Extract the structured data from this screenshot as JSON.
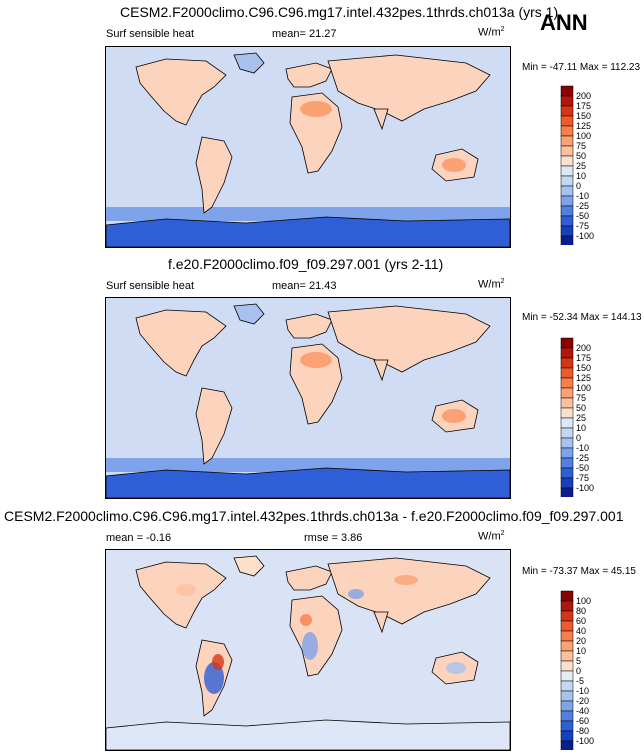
{
  "header": {
    "season": "ANN"
  },
  "panels": [
    {
      "title": "CESM2.F2000climo.C96.C96.mg17.intel.432pes.1thrds.ch013a (yrs 1)",
      "left_label": "Surf sensible heat",
      "center_label": "mean=  21.27",
      "units": "W/m",
      "units_exp": "2",
      "minmax": "Min = -47.11 Max = 112.23"
    },
    {
      "title": "f.e20.F2000climo.f09_f09.297.001 (yrs 2-11)",
      "left_label": "Surf sensible heat",
      "center_label": "mean=  21.43",
      "units": "W/m",
      "units_exp": "2",
      "minmax": "Min = -52.34 Max = 144.13"
    },
    {
      "title": "CESM2.F2000climo.C96.C96.mg17.intel.432pes.1thrds.ch013a - f.e20.F2000climo.f09_f09.297.001",
      "left_label": "mean =  -0.16",
      "center_label": "rmse =  3.86",
      "units": "W/m",
      "units_exp": "2",
      "minmax": "Min = -73.37 Max =  45.15"
    }
  ],
  "chart_data": [
    {
      "type": "heatmap",
      "title": "CESM2.F2000climo.C96.C96.mg17.intel.432pes.1thrds.ch013a (yrs 1)",
      "variable": "Surf sensible heat",
      "units": "W/m2",
      "mean": 21.27,
      "min": -47.11,
      "max": 112.23,
      "colorbar_levels": [
        "200",
        "175",
        "150",
        "125",
        "100",
        "75",
        "50",
        "25",
        "10",
        "0",
        "-10",
        "-25",
        "-50",
        "-75",
        "-100"
      ],
      "colorbar_colors": [
        "#8b0000",
        "#b0170a",
        "#d63618",
        "#ee5a2b",
        "#f87e4b",
        "#fba173",
        "#fcc09c",
        "#fde0cc",
        "#dde7f7",
        "#c5d6f2",
        "#a9c1ee",
        "#7ea3ea",
        "#5180e0",
        "#2e5fd6",
        "#1740c0",
        "#0a1f8f"
      ]
    },
    {
      "type": "heatmap",
      "title": "f.e20.F2000climo.f09_f09.297.001 (yrs 2-11)",
      "variable": "Surf sensible heat",
      "units": "W/m2",
      "mean": 21.43,
      "min": -52.34,
      "max": 144.13,
      "colorbar_levels": [
        "200",
        "175",
        "150",
        "125",
        "100",
        "75",
        "50",
        "25",
        "10",
        "0",
        "-10",
        "-25",
        "-50",
        "-75",
        "-100"
      ],
      "colorbar_colors": [
        "#8b0000",
        "#b0170a",
        "#d63618",
        "#ee5a2b",
        "#f87e4b",
        "#fba173",
        "#fcc09c",
        "#fde0cc",
        "#dde7f7",
        "#c5d6f2",
        "#a9c1ee",
        "#7ea3ea",
        "#5180e0",
        "#2e5fd6",
        "#1740c0",
        "#0a1f8f"
      ]
    },
    {
      "type": "heatmap",
      "title": "CESM2.F2000climo.C96.C96.mg17.intel.432pes.1thrds.ch013a - f.e20.F2000climo.f09_f09.297.001",
      "units": "W/m2",
      "mean": -0.16,
      "rmse": 3.86,
      "min": -73.37,
      "max": 45.15,
      "colorbar_levels": [
        "100",
        "80",
        "60",
        "40",
        "20",
        "10",
        "5",
        "0",
        "-5",
        "-10",
        "-20",
        "-40",
        "-60",
        "-80",
        "-100"
      ],
      "colorbar_colors": [
        "#8b0000",
        "#b0170a",
        "#d63618",
        "#ee5a2b",
        "#f87e4b",
        "#fba173",
        "#fcc09c",
        "#fde0cc",
        "#e6edf9",
        "#c5d6f2",
        "#a9c1ee",
        "#7ea3ea",
        "#5180e0",
        "#2e5fd6",
        "#1740c0",
        "#0a1f8f"
      ]
    }
  ],
  "colors": {
    "ocean_base": "#cfdcf3",
    "land_warm": "#fcd3bd",
    "coast": "#000000"
  }
}
